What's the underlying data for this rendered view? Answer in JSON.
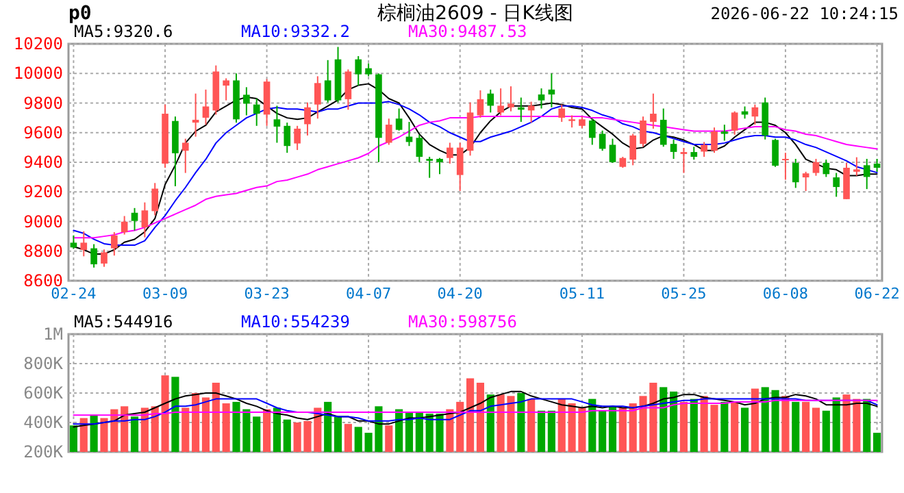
{
  "chart_data": [
    {
      "type": "candlestick",
      "title": "棕榈油2609 - 日K线图",
      "annotations": [
        "p0",
        "2026-06-22 10:24:15"
      ],
      "legend": "top left",
      "grid": true,
      "categories": [
        "02-24",
        null,
        null,
        null,
        null,
        null,
        null,
        null,
        null,
        "03-09",
        null,
        null,
        null,
        null,
        null,
        null,
        null,
        null,
        null,
        "03-23",
        null,
        null,
        null,
        null,
        null,
        null,
        null,
        null,
        null,
        "04-07",
        null,
        null,
        null,
        null,
        null,
        null,
        null,
        null,
        "04-20",
        null,
        null,
        null,
        null,
        null,
        null,
        null,
        null,
        null,
        null,
        null,
        "05-11",
        null,
        null,
        null,
        null,
        null,
        null,
        null,
        null,
        null,
        "05-25",
        null,
        null,
        null,
        null,
        null,
        null,
        null,
        null,
        null,
        "06-08",
        null,
        null,
        null,
        null,
        null,
        null,
        null,
        null,
        "06-22"
      ],
      "ylim": [
        8600,
        10200
      ],
      "yticks": [
        8600,
        8800,
        9000,
        9200,
        9400,
        9600,
        9800,
        10000,
        10200
      ],
      "ohlc": [
        [
          8857,
          8906,
          8817,
          8825
        ],
        [
          8808,
          8934,
          8765,
          8857
        ],
        [
          8819,
          8847,
          8689,
          8711
        ],
        [
          8716,
          8811,
          8694,
          8792
        ],
        [
          8819,
          8928,
          8770,
          8906
        ],
        [
          8928,
          9037,
          8912,
          8999
        ],
        [
          9059,
          9091,
          8939,
          9004
        ],
        [
          8961,
          9129,
          8893,
          9075
        ],
        [
          9070,
          9260,
          9042,
          9222
        ],
        [
          9391,
          9790,
          9363,
          9728
        ],
        [
          9679,
          9709,
          9238,
          9461
        ],
        [
          9478,
          9559,
          9328,
          9532
        ],
        [
          9668,
          9864,
          9573,
          9687
        ],
        [
          9701,
          9891,
          9654,
          9777
        ],
        [
          9750,
          10054,
          9722,
          10013
        ],
        [
          9918,
          9967,
          9818,
          9953
        ],
        [
          9953,
          10000,
          9668,
          9690
        ],
        [
          9856,
          9907,
          9717,
          9796
        ],
        [
          9790,
          9831,
          9646,
          9728
        ],
        [
          9722,
          9962,
          9646,
          9945
        ],
        [
          9690,
          9782,
          9532,
          9641
        ],
        [
          9646,
          9668,
          9464,
          9510
        ],
        [
          9527,
          9646,
          9483,
          9627
        ],
        [
          9657,
          9804,
          9581,
          9771
        ],
        [
          9790,
          9981,
          9695,
          9935
        ],
        [
          9953,
          10090,
          9804,
          9818
        ],
        [
          10095,
          10179,
          9804,
          9818
        ],
        [
          9826,
          10027,
          9755,
          10013
        ],
        [
          10095,
          10117,
          9918,
          9994
        ],
        [
          10035,
          10068,
          9981,
          9994
        ],
        [
          9994,
          10000,
          9401,
          9565
        ],
        [
          9532,
          9695,
          9518,
          9654
        ],
        [
          9695,
          9763,
          9614,
          9619
        ],
        [
          9573,
          9673,
          9510,
          9537
        ],
        [
          9565,
          9586,
          9401,
          9437
        ],
        [
          9423,
          9437,
          9295,
          9410
        ],
        [
          9423,
          9429,
          9320,
          9401
        ],
        [
          9429,
          9532,
          9391,
          9499
        ],
        [
          9314,
          9532,
          9206,
          9499
        ],
        [
          9478,
          9804,
          9445,
          9736
        ],
        [
          9717,
          9886,
          9701,
          9826
        ],
        [
          9864,
          9891,
          9736,
          9782
        ],
        [
          9736,
          9899,
          9717,
          9782
        ],
        [
          9771,
          9913,
          9744,
          9796
        ],
        [
          9771,
          9837,
          9673,
          9755
        ],
        [
          9750,
          9809,
          9668,
          9782
        ],
        [
          9858,
          9899,
          9763,
          9818
        ],
        [
          9891,
          10000,
          9771,
          9858
        ],
        [
          9701,
          9790,
          9673,
          9763
        ],
        [
          9679,
          9717,
          9635,
          9690
        ],
        [
          9646,
          9709,
          9630,
          9690
        ],
        [
          9682,
          9695,
          9518,
          9565
        ],
        [
          9592,
          9614,
          9478,
          9491
        ],
        [
          9518,
          9559,
          9396,
          9401
        ],
        [
          9369,
          9437,
          9363,
          9429
        ],
        [
          9418,
          9592,
          9380,
          9581
        ],
        [
          9524,
          9709,
          9505,
          9682
        ],
        [
          9673,
          9864,
          9627,
          9728
        ],
        [
          9687,
          9763,
          9505,
          9518
        ],
        [
          9524,
          9554,
          9423,
          9470
        ],
        [
          9456,
          9497,
          9328,
          9469
        ],
        [
          9469,
          9505,
          9418,
          9437
        ],
        [
          9472,
          9537,
          9437,
          9518
        ],
        [
          9478,
          9635,
          9464,
          9608
        ],
        [
          9608,
          9654,
          9546,
          9592
        ],
        [
          9614,
          9744,
          9586,
          9736
        ],
        [
          9744,
          9777,
          9695,
          9722
        ],
        [
          9709,
          9790,
          9654,
          9771
        ],
        [
          9804,
          9837,
          9554,
          9581
        ],
        [
          9551,
          9559,
          9369,
          9377
        ],
        [
          9418,
          9464,
          9282,
          9423
        ],
        [
          9396,
          9423,
          9227,
          9265
        ],
        [
          9298,
          9336,
          9206,
          9325
        ],
        [
          9328,
          9423,
          9309,
          9401
        ],
        [
          9396,
          9418,
          9301,
          9320
        ],
        [
          9298,
          9328,
          9167,
          9233
        ],
        [
          9151,
          9396,
          9151,
          9363
        ],
        [
          9336,
          9434,
          9309,
          9352
        ],
        [
          9380,
          9423,
          9219,
          9301
        ],
        [
          9391,
          9423,
          9336,
          9363
        ]
      ],
      "colors": [
        "#00a800",
        "#ff5555",
        "#00a800",
        "#ff5555",
        "#ff5555",
        "#ff5555",
        "#00a800",
        "#ff5555",
        "#ff5555",
        "#ff5555",
        "#00a800",
        "#ff5555",
        "#ff5555",
        "#ff5555",
        "#ff5555",
        "#ff5555",
        "#00a800",
        "#00a800",
        "#00a800",
        "#ff5555",
        "#00a800",
        "#00a800",
        "#ff5555",
        "#ff5555",
        "#ff5555",
        "#00a800",
        "#00a800",
        "#ff5555",
        "#00a800",
        "#00a800",
        "#00a800",
        "#ff5555",
        "#00a800",
        "#00a800",
        "#00a800",
        "#00a800",
        "#00a800",
        "#ff5555",
        "#ff5555",
        "#ff5555",
        "#ff5555",
        "#00a800",
        "#ff5555",
        "#ff5555",
        "#00a800",
        "#ff5555",
        "#00a800",
        "#00a800",
        "#ff5555",
        "#ff5555",
        "#ff5555",
        "#00a800",
        "#00a800",
        "#00a800",
        "#ff5555",
        "#ff5555",
        "#ff5555",
        "#ff5555",
        "#00a800",
        "#00a800",
        "#ff5555",
        "#00a800",
        "#ff5555",
        "#ff5555",
        "#00a800",
        "#ff5555",
        "#00a800",
        "#ff5555",
        "#00a800",
        "#00a800",
        "#ff5555",
        "#00a800",
        "#ff5555",
        "#ff5555",
        "#00a800",
        "#00a800",
        "#ff5555",
        "#ff5555",
        "#00a800",
        "#00a800"
      ],
      "series": [
        {
          "type": "line",
          "name": "MA5:9320.6",
          "color": "#000000",
          "values": [
            8830,
            8810,
            8780,
            8780,
            8810,
            8860,
            8880,
            8930,
            9020,
            9250,
            9380,
            9530,
            9610,
            9650,
            9740,
            9780,
            9820,
            9840,
            9830,
            9780,
            9730,
            9700,
            9690,
            9700,
            9740,
            9780,
            9820,
            9890,
            9920,
            9930,
            9890,
            9830,
            9800,
            9700,
            9590,
            9520,
            9480,
            9450,
            9450,
            9500,
            9600,
            9680,
            9740,
            9780,
            9780,
            9780,
            9790,
            9800,
            9790,
            9770,
            9760,
            9690,
            9640,
            9590,
            9530,
            9490,
            9500,
            9550,
            9580,
            9570,
            9550,
            9520,
            9480,
            9480,
            9510,
            9570,
            9620,
            9670,
            9670,
            9650,
            9600,
            9520,
            9420,
            9390,
            9360,
            9350,
            9310,
            9310,
            9320,
            9320
          ]
        },
        {
          "type": "line",
          "name": "MA10:9332.2",
          "color": "#0000ff",
          "values": [
            8940,
            8920,
            8880,
            8850,
            8840,
            8840,
            8840,
            8870,
            8960,
            9040,
            9140,
            9230,
            9330,
            9420,
            9530,
            9600,
            9650,
            9700,
            9730,
            9760,
            9770,
            9760,
            9760,
            9750,
            9740,
            9760,
            9760,
            9780,
            9800,
            9800,
            9800,
            9810,
            9790,
            9760,
            9720,
            9670,
            9640,
            9600,
            9570,
            9540,
            9540,
            9570,
            9590,
            9610,
            9640,
            9670,
            9710,
            9760,
            9780,
            9780,
            9770,
            9750,
            9720,
            9700,
            9660,
            9640,
            9610,
            9600,
            9580,
            9560,
            9540,
            9520,
            9520,
            9520,
            9530,
            9550,
            9570,
            9580,
            9580,
            9570,
            9570,
            9550,
            9520,
            9500,
            9470,
            9440,
            9410,
            9370,
            9350,
            9330
          ]
        },
        {
          "type": "line",
          "name": "MA30:9487.53",
          "color": "#ff00ff",
          "values": [
            8890,
            8890,
            8890,
            8900,
            8910,
            8930,
            8940,
            8960,
            8990,
            9020,
            9050,
            9080,
            9110,
            9150,
            9170,
            9180,
            9190,
            9210,
            9230,
            9240,
            9270,
            9280,
            9300,
            9320,
            9350,
            9370,
            9390,
            9410,
            9430,
            9460,
            9510,
            9540,
            9570,
            9610,
            9650,
            9670,
            9680,
            9700,
            9700,
            9700,
            9710,
            9710,
            9710,
            9710,
            9710,
            9710,
            9710,
            9710,
            9710,
            9710,
            9710,
            9700,
            9700,
            9690,
            9680,
            9670,
            9660,
            9650,
            9640,
            9630,
            9620,
            9610,
            9610,
            9610,
            9610,
            9620,
            9630,
            9640,
            9640,
            9640,
            9620,
            9610,
            9590,
            9580,
            9560,
            9540,
            9520,
            9510,
            9500,
            9490
          ]
        }
      ]
    },
    {
      "type": "bar",
      "legend": "top left",
      "grid": true,
      "tick_labels": "y",
      "categories": [
        null,
        null,
        null,
        null,
        null,
        null,
        null,
        null,
        null,
        null,
        null,
        null,
        null,
        null,
        null,
        null,
        null,
        null,
        null,
        null,
        null,
        null,
        null,
        null,
        null,
        null,
        null,
        null,
        null,
        null,
        null,
        null,
        null,
        null,
        null,
        null,
        null,
        null,
        null,
        null,
        null,
        null,
        null,
        null,
        null,
        null,
        null,
        null,
        null,
        null,
        null,
        null,
        null,
        null,
        null,
        null,
        null,
        null,
        null,
        null,
        null,
        null,
        null,
        null,
        null,
        null,
        null,
        null,
        null,
        null,
        null,
        null,
        null,
        null,
        null,
        null,
        null,
        null,
        null,
        null
      ],
      "ylim": [
        200000,
        1000000
      ],
      "yticks": [
        {
          "value": 200000,
          "label": "200K"
        },
        {
          "value": 400000,
          "label": "400K"
        },
        {
          "value": 600000,
          "label": "600K"
        },
        {
          "value": 800000,
          "label": "800K"
        },
        {
          "value": 1000000,
          "label": "1M"
        }
      ],
      "series": [
        {
          "type": "bar",
          "colors": [
            "#00a800",
            "#ff5555",
            "#00a800",
            "#ff5555",
            "#ff5555",
            "#ff5555",
            "#00a800",
            "#ff5555",
            "#ff5555",
            "#ff5555",
            "#00a800",
            "#ff5555",
            "#ff5555",
            "#ff5555",
            "#ff5555",
            "#ff5555",
            "#00a800",
            "#00a800",
            "#00a800",
            "#ff5555",
            "#00a800",
            "#00a800",
            "#ff5555",
            "#ff5555",
            "#ff5555",
            "#00a800",
            "#00a800",
            "#ff5555",
            "#00a800",
            "#00a800",
            "#00a800",
            "#ff5555",
            "#00a800",
            "#00a800",
            "#00a800",
            "#00a800",
            "#00a800",
            "#ff5555",
            "#ff5555",
            "#ff5555",
            "#ff5555",
            "#00a800",
            "#ff5555",
            "#ff5555",
            "#00a800",
            "#ff5555",
            "#00a800",
            "#00a800",
            "#ff5555",
            "#ff5555",
            "#ff5555",
            "#00a800",
            "#00a800",
            "#00a800",
            "#ff5555",
            "#ff5555",
            "#ff5555",
            "#ff5555",
            "#00a800",
            "#00a800",
            "#ff5555",
            "#00a800",
            "#ff5555",
            "#ff5555",
            "#00a800",
            "#ff5555",
            "#00a800",
            "#ff5555",
            "#00a800",
            "#00a800",
            "#ff5555",
            "#00a800",
            "#ff5555",
            "#ff5555",
            "#00a800",
            "#00a800",
            "#ff5555",
            "#ff5555",
            "#00a800",
            "#00a800"
          ],
          "values": [
            380000,
            430000,
            450000,
            430000,
            490000,
            510000,
            440000,
            500000,
            510000,
            720000,
            710000,
            500000,
            600000,
            570000,
            670000,
            530000,
            540000,
            490000,
            440000,
            490000,
            500000,
            420000,
            400000,
            410000,
            500000,
            540000,
            440000,
            390000,
            370000,
            330000,
            510000,
            380000,
            490000,
            470000,
            470000,
            460000,
            460000,
            490000,
            540000,
            700000,
            670000,
            590000,
            590000,
            580000,
            600000,
            560000,
            480000,
            480000,
            560000,
            530000,
            500000,
            560000,
            480000,
            510000,
            500000,
            530000,
            580000,
            670000,
            640000,
            610000,
            540000,
            560000,
            580000,
            520000,
            540000,
            540000,
            500000,
            630000,
            640000,
            620000,
            580000,
            540000,
            540000,
            500000,
            480000,
            570000,
            590000,
            560000,
            560000,
            330000
          ]
        },
        {
          "type": "line",
          "name": "MA5:544916",
          "color": "#000000",
          "values": [
            370000,
            380000,
            390000,
            400000,
            410000,
            450000,
            460000,
            470000,
            500000,
            530000,
            560000,
            580000,
            590000,
            600000,
            600000,
            580000,
            560000,
            530000,
            510000,
            480000,
            460000,
            450000,
            430000,
            420000,
            440000,
            460000,
            440000,
            440000,
            410000,
            410000,
            390000,
            390000,
            410000,
            430000,
            430000,
            440000,
            450000,
            460000,
            470000,
            500000,
            530000,
            570000,
            590000,
            610000,
            610000,
            580000,
            560000,
            540000,
            520000,
            510000,
            500000,
            510000,
            500000,
            510000,
            500000,
            500000,
            510000,
            530000,
            560000,
            570000,
            590000,
            590000,
            570000,
            560000,
            550000,
            540000,
            520000,
            530000,
            560000,
            570000,
            570000,
            590000,
            580000,
            560000,
            520000,
            520000,
            520000,
            530000,
            530000,
            510000
          ]
        },
        {
          "type": "line",
          "name": "MA10:554239",
          "color": "#0000ff",
          "values": [
            390000,
            390000,
            390000,
            400000,
            410000,
            410000,
            420000,
            420000,
            440000,
            470000,
            510000,
            510000,
            520000,
            540000,
            560000,
            560000,
            560000,
            560000,
            560000,
            530000,
            500000,
            480000,
            470000,
            470000,
            460000,
            450000,
            440000,
            440000,
            430000,
            410000,
            410000,
            410000,
            420000,
            420000,
            430000,
            420000,
            420000,
            420000,
            450000,
            480000,
            480000,
            510000,
            520000,
            530000,
            540000,
            560000,
            560000,
            560000,
            560000,
            560000,
            540000,
            520000,
            510000,
            510000,
            510000,
            500000,
            510000,
            520000,
            530000,
            540000,
            550000,
            550000,
            560000,
            560000,
            560000,
            560000,
            560000,
            560000,
            560000,
            560000,
            560000,
            560000,
            550000,
            550000,
            550000,
            550000,
            550000,
            550000,
            550000,
            520000
          ]
        },
        {
          "type": "line",
          "name": "MA30:598756",
          "color": "#ff00ff",
          "values": [
            450000,
            450000,
            450000,
            450000,
            450000,
            450000,
            450000,
            450000,
            460000,
            460000,
            470000,
            470000,
            470000,
            470000,
            470000,
            470000,
            470000,
            470000,
            470000,
            470000,
            470000,
            470000,
            470000,
            470000,
            470000,
            470000,
            470000,
            470000,
            470000,
            470000,
            470000,
            470000,
            470000,
            470000,
            470000,
            470000,
            470000,
            470000,
            470000,
            470000,
            470000,
            470000,
            470000,
            470000,
            470000,
            470000,
            470000,
            470000,
            470000,
            470000,
            470000,
            480000,
            480000,
            480000,
            480000,
            480000,
            500000,
            500000,
            500000,
            520000,
            530000,
            530000,
            530000,
            530000,
            530000,
            540000,
            540000,
            540000,
            540000,
            550000,
            550000,
            550000,
            550000,
            550000,
            550000,
            550000,
            550000,
            550000,
            550000,
            550000
          ]
        }
      ]
    }
  ]
}
